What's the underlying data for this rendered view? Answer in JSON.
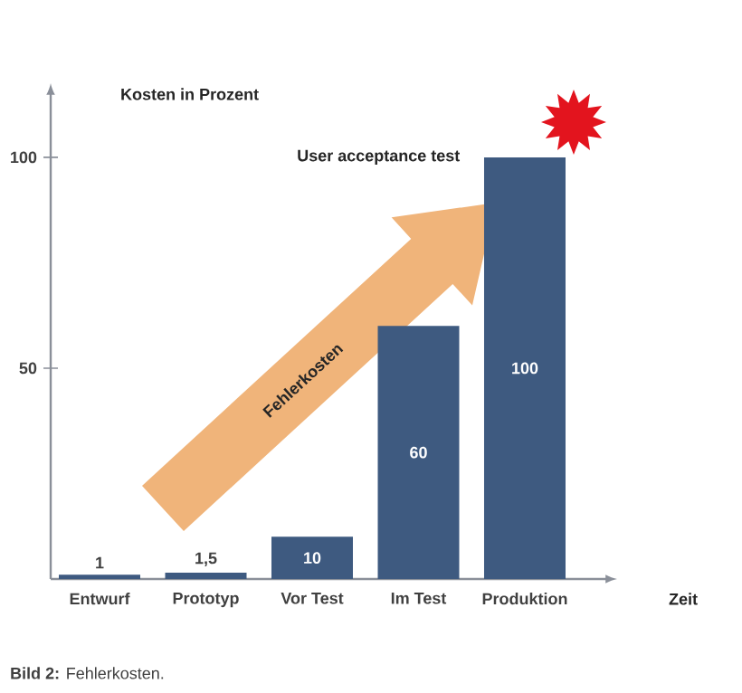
{
  "chart_data": {
    "type": "bar",
    "xlabel": "Zeit",
    "ylabel": "Kosten in Prozent",
    "categories": [
      "Entwurf",
      "Prototyp",
      "Vor Test",
      "Im Test",
      "Produktion"
    ],
    "values": [
      1,
      1.5,
      10,
      60,
      100
    ],
    "value_labels": [
      "1",
      "1,5",
      "10",
      "60",
      "100"
    ],
    "color": "#3e5a80",
    "ylim": [
      0,
      115
    ],
    "yticks": [
      50,
      100
    ],
    "annotations": [
      "Fehlerkosten",
      "User acceptance test",
      "**Bild 2:** Fehlerkosten."
    ]
  }
}
